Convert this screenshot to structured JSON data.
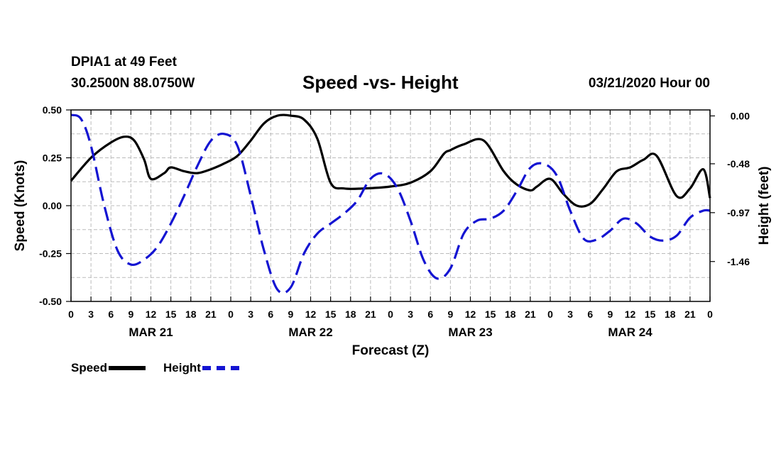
{
  "header": {
    "station": "DPIA1 at 49 Feet",
    "coords": "30.2500N 88.0750W",
    "title": "Speed -vs- Height",
    "datetime": "03/21/2020 Hour 00"
  },
  "legend": {
    "speed_label": "Speed",
    "height_label": "Height"
  },
  "colors": {
    "speed": "#000000",
    "height": "#1414d2",
    "grid": "#bbbbbb"
  },
  "chart_data": {
    "type": "line",
    "title": "Speed -vs- Height",
    "xlabel": "Forecast (Z)",
    "ylabel": "Speed (Knots)",
    "y2label": "Height (feet)",
    "grid": true,
    "xlim": [
      0,
      96
    ],
    "ylim": [
      -0.5,
      0.5
    ],
    "y2lim": [
      0.06,
      -1.86
    ],
    "x_ticks": [
      0,
      3,
      6,
      9,
      12,
      15,
      18,
      21,
      24,
      27,
      30,
      33,
      36,
      39,
      42,
      45,
      48,
      51,
      54,
      57,
      60,
      63,
      66,
      69,
      72,
      75,
      78,
      81,
      84,
      87,
      90,
      93,
      96
    ],
    "x_tick_labels": [
      "0",
      "3",
      "6",
      "9",
      "12",
      "15",
      "18",
      "21",
      "0",
      "3",
      "6",
      "9",
      "12",
      "15",
      "18",
      "21",
      "0",
      "3",
      "6",
      "9",
      "12",
      "15",
      "18",
      "21",
      "0",
      "3",
      "6",
      "9",
      "12",
      "15",
      "18",
      "21",
      "0"
    ],
    "day_labels": [
      {
        "x": 12,
        "label": "MAR 21"
      },
      {
        "x": 36,
        "label": "MAR 22"
      },
      {
        "x": 60,
        "label": "MAR 23"
      },
      {
        "x": 84,
        "label": "MAR 24"
      }
    ],
    "y_ticks": [
      0.5,
      0.25,
      0.0,
      -0.25,
      -0.5
    ],
    "y_tick_labels": [
      "0.50",
      "0.25",
      "0.00",
      "-0.25",
      "-0.50"
    ],
    "y2_ticks": [
      0.0,
      -0.48,
      -0.97,
      -1.46
    ],
    "y2_tick_labels": [
      "0.00",
      "-0.48",
      "-0.97",
      "-1.46"
    ],
    "series": [
      {
        "name": "Speed",
        "axis": "left",
        "style": "solid",
        "x": [
          0,
          3,
          6,
          8,
          9.5,
          11,
          12,
          14,
          15,
          17,
          19,
          21,
          23,
          25,
          27,
          29,
          31,
          33,
          35,
          37,
          39,
          41,
          44,
          48,
          51,
          54,
          56,
          57,
          59,
          62,
          65,
          67,
          69,
          70,
          72,
          74,
          76,
          78,
          80,
          82,
          84,
          86,
          88,
          91,
          93,
          95,
          96
        ],
        "values": [
          0.13,
          0.25,
          0.33,
          0.36,
          0.34,
          0.24,
          0.14,
          0.17,
          0.2,
          0.18,
          0.17,
          0.19,
          0.22,
          0.26,
          0.34,
          0.43,
          0.47,
          0.47,
          0.45,
          0.35,
          0.12,
          0.09,
          0.09,
          0.1,
          0.12,
          0.18,
          0.27,
          0.29,
          0.32,
          0.34,
          0.18,
          0.11,
          0.08,
          0.1,
          0.14,
          0.06,
          0.0,
          0.01,
          0.09,
          0.18,
          0.2,
          0.24,
          0.26,
          0.05,
          0.09,
          0.19,
          0.04
        ]
      },
      {
        "name": "Height",
        "axis": "right",
        "style": "dashed",
        "x": [
          0,
          1.5,
          3,
          5,
          7,
          9,
          11,
          13,
          15,
          17,
          19,
          21,
          23,
          25,
          27,
          29,
          31,
          33,
          35,
          37,
          39,
          41,
          43,
          45,
          47,
          49,
          51,
          53,
          55,
          57,
          59,
          61,
          63,
          65,
          67,
          69,
          71,
          73,
          75,
          77,
          79,
          81,
          83,
          85,
          87,
          89,
          91,
          93,
          95,
          96
        ],
        "values": [
          0.01,
          -0.03,
          -0.3,
          -0.9,
          -1.35,
          -1.49,
          -1.44,
          -1.31,
          -1.08,
          -0.8,
          -0.5,
          -0.25,
          -0.18,
          -0.3,
          -0.8,
          -1.35,
          -1.74,
          -1.72,
          -1.38,
          -1.18,
          -1.08,
          -0.98,
          -0.85,
          -0.63,
          -0.58,
          -0.72,
          -1.05,
          -1.45,
          -1.63,
          -1.53,
          -1.18,
          -1.05,
          -1.03,
          -0.95,
          -0.75,
          -0.52,
          -0.48,
          -0.6,
          -0.95,
          -1.23,
          -1.24,
          -1.15,
          -1.03,
          -1.08,
          -1.21,
          -1.25,
          -1.2,
          -1.02,
          -0.95,
          -0.95
        ]
      }
    ]
  }
}
